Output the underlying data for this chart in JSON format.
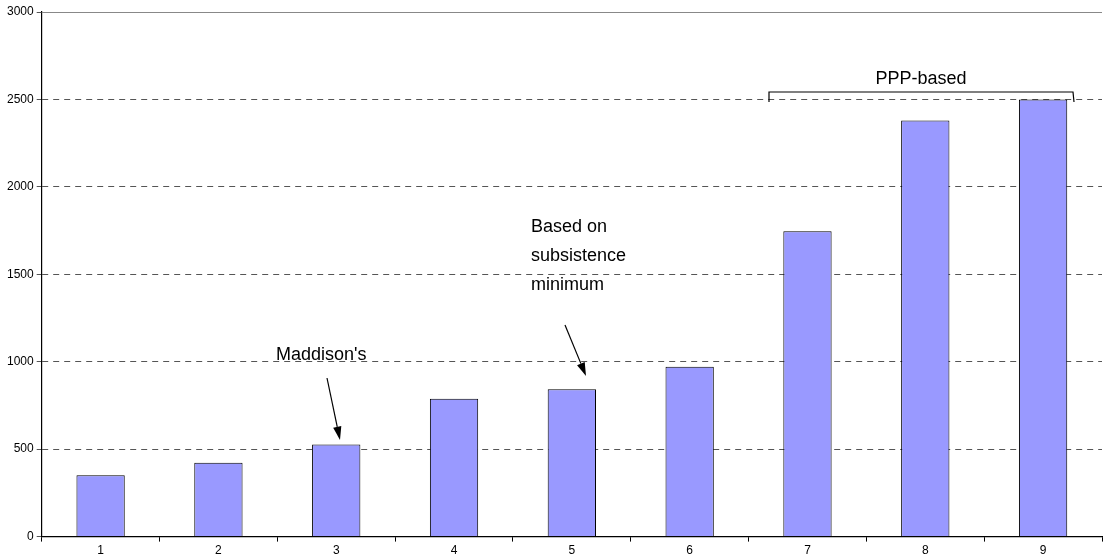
{
  "chart_data": {
    "type": "bar",
    "categories": [
      "1",
      "2",
      "3",
      "4",
      "5",
      "6",
      "7",
      "8",
      "9"
    ],
    "values": [
      351,
      423,
      527,
      789,
      842,
      971,
      1746,
      2379,
      2500
    ],
    "color": "#9999ff",
    "ylim": [
      0,
      3000
    ],
    "yticks": [
      0,
      500,
      1000,
      1500,
      2000,
      2500,
      3000
    ],
    "grid": "y",
    "legend": false,
    "annotations": [
      "Maddison's",
      "Based on\nsubsistence\nminimum",
      "PPP-based"
    ]
  }
}
